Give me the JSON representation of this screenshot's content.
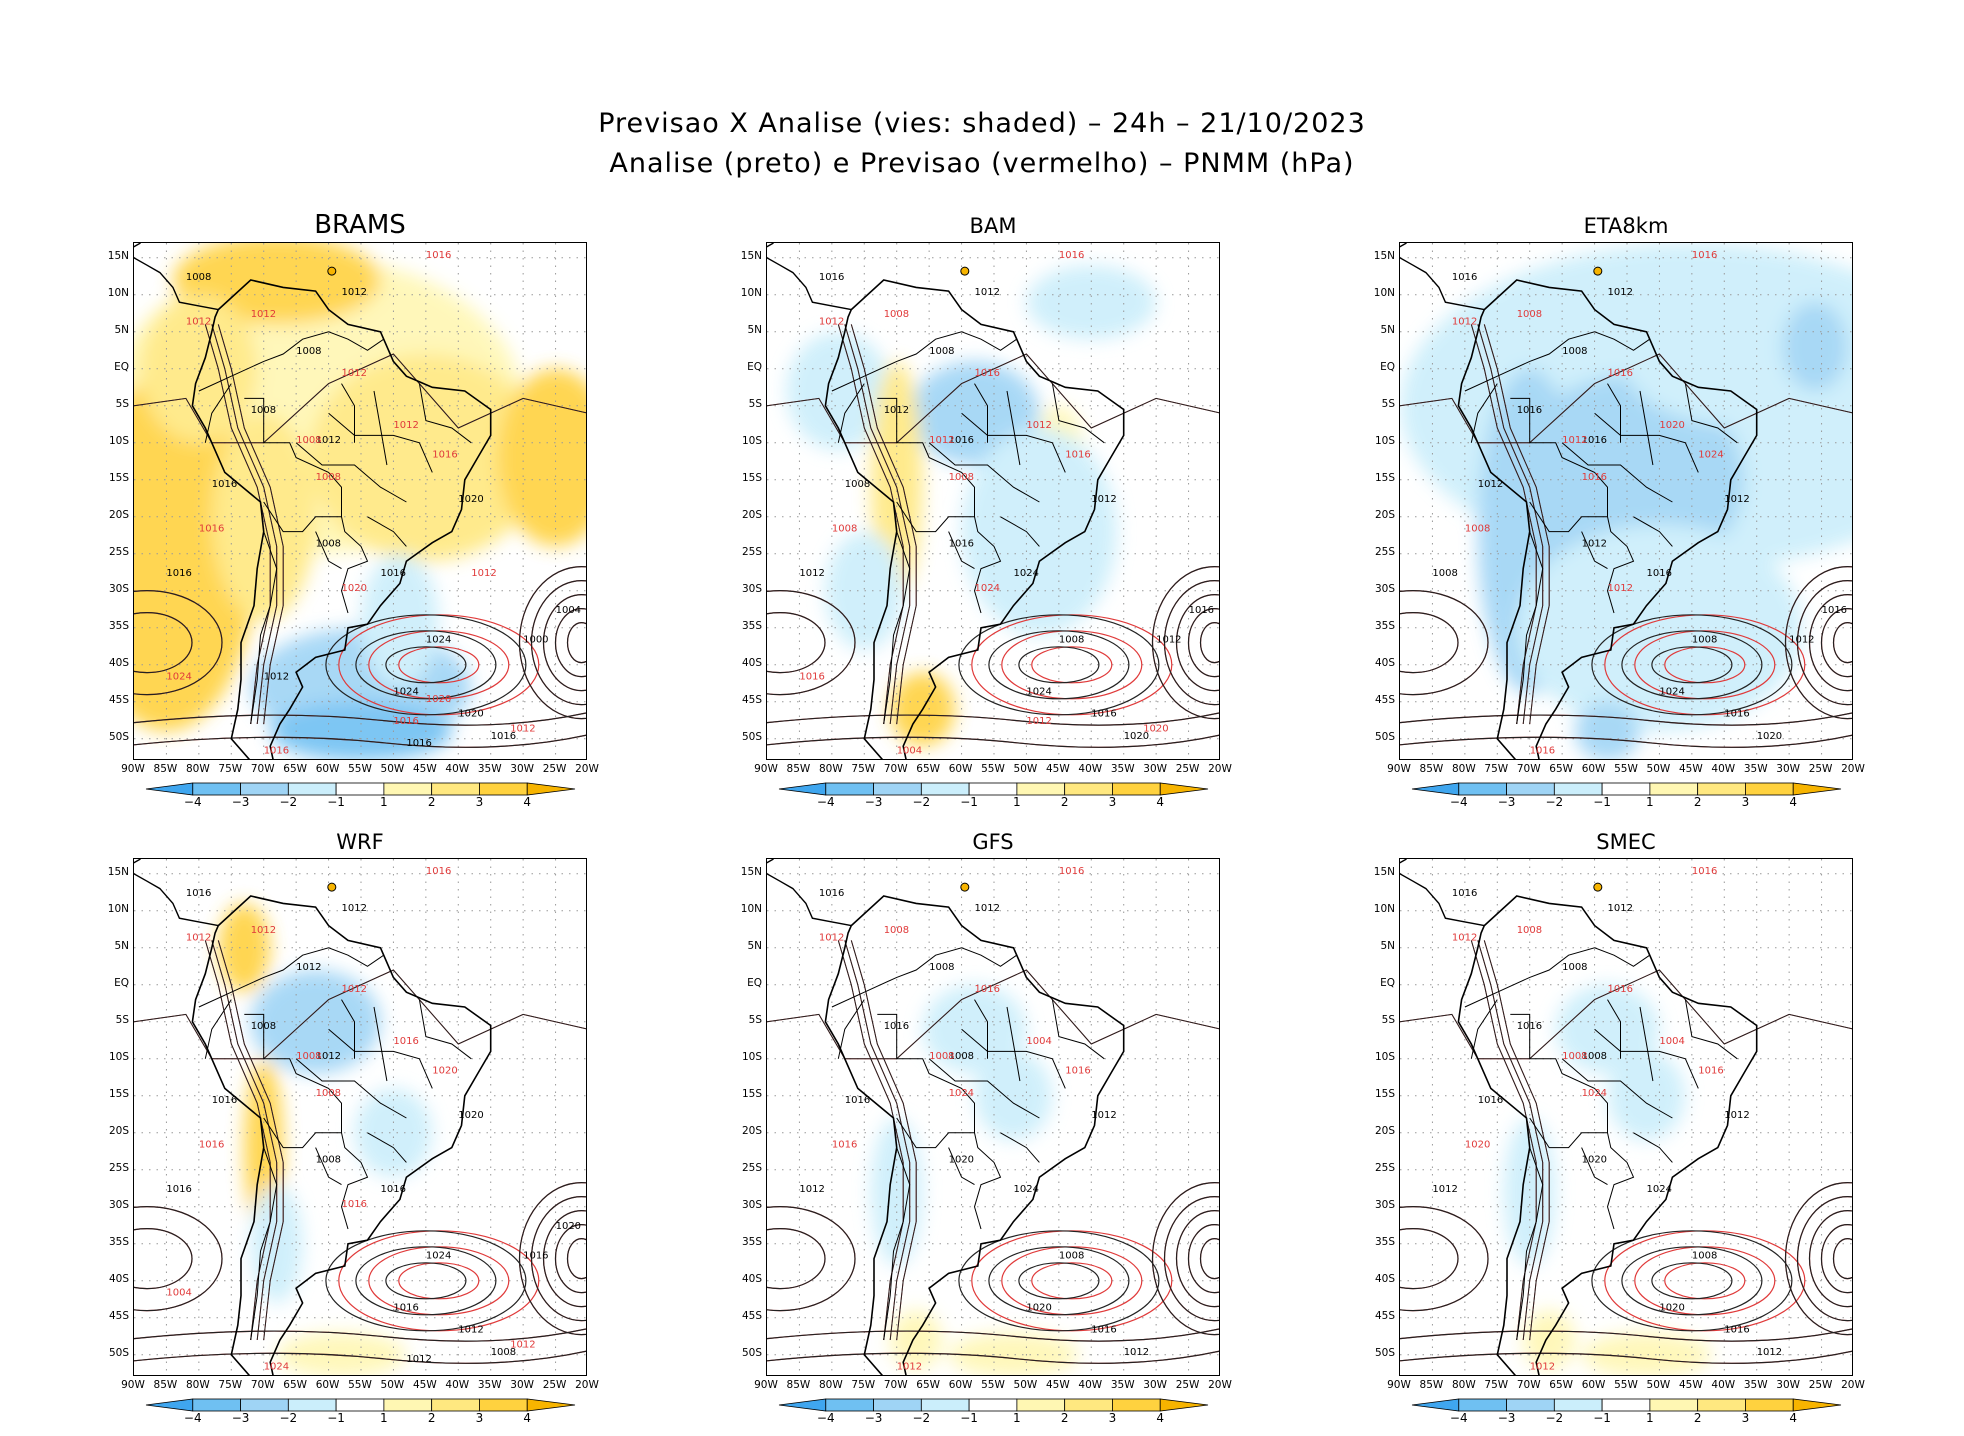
{
  "title": {
    "line1": "Previsao X Analise (vies: shaded) – 24h – 21/10/2023",
    "line2": "Analise (preto) e Previsao (vermelho) – PNMM (hPa)"
  },
  "axes": {
    "lat_labels": [
      "15N",
      "10N",
      "5N",
      "EQ",
      "5S",
      "10S",
      "15S",
      "20S",
      "25S",
      "30S",
      "35S",
      "40S",
      "45S",
      "50S"
    ],
    "lon_labels": [
      "90W",
      "85W",
      "80W",
      "75W",
      "70W",
      "65W",
      "60W",
      "55W",
      "50W",
      "45W",
      "40W",
      "35W",
      "30W",
      "25W",
      "20W"
    ]
  },
  "colorbar": {
    "tick_labels": [
      "−4",
      "−3",
      "−2",
      "−1",
      "1",
      "2",
      "3",
      "4"
    ],
    "colors": [
      "#3fa6ef",
      "#6fc0f2",
      "#9fd4f5",
      "#cbeefb",
      "#ffffff",
      "#fff7b3",
      "#ffe880",
      "#ffd23f",
      "#f7b400"
    ]
  },
  "panels": [
    {
      "name": "BRAMS",
      "bias": "warm",
      "black_labels": [
        "1008",
        "1012",
        "1008",
        "1008",
        "1012",
        "1016",
        "1016",
        "1008",
        "1016",
        "1020",
        "1024",
        "1024",
        "1020",
        "1016",
        "1004",
        "1000",
        "1016",
        "1012"
      ],
      "red_labels": [
        "1016",
        "1012",
        "1012",
        "1008",
        "1012",
        "1016",
        "1008",
        "1012",
        "1016",
        "1016",
        "1020",
        "1012",
        "1024",
        "1016",
        "1020",
        "1012"
      ]
    },
    {
      "name": "BAM",
      "bias": "cool",
      "black_labels": [
        "1016",
        "1012",
        "1008",
        "1012",
        "1016",
        "1008",
        "1012",
        "1016",
        "1024",
        "1012",
        "1008",
        "1024",
        "1016",
        "1020",
        "1016",
        "1012"
      ],
      "red_labels": [
        "1016",
        "1012",
        "1008",
        "1012",
        "1016",
        "1008",
        "1008",
        "1012",
        "1016",
        "1004",
        "1024",
        "1020",
        "1016",
        "1012"
      ]
    },
    {
      "name": "ETA8km",
      "bias": "cool-strong",
      "black_labels": [
        "1016",
        "1012",
        "1008",
        "1016",
        "1016",
        "1012",
        "1008",
        "1012",
        "1016",
        "1012",
        "1008",
        "1024",
        "1016",
        "1020",
        "1016",
        "1012"
      ],
      "red_labels": [
        "1016",
        "1012",
        "1008",
        "1012",
        "1016",
        "1008",
        "1016",
        "1020",
        "1024",
        "1016",
        "1012"
      ]
    },
    {
      "name": "WRF",
      "bias": "mixed",
      "black_labels": [
        "1016",
        "1012",
        "1012",
        "1008",
        "1012",
        "1016",
        "1016",
        "1008",
        "1016",
        "1020",
        "1024",
        "1016",
        "1012",
        "1008",
        "1020",
        "1016",
        "1012"
      ],
      "red_labels": [
        "1016",
        "1012",
        "1012",
        "1008",
        "1012",
        "1016",
        "1008",
        "1016",
        "1020",
        "1024",
        "1016",
        "1012",
        "1004"
      ]
    },
    {
      "name": "GFS",
      "bias": "slightly-cool",
      "black_labels": [
        "1016",
        "1012",
        "1008",
        "1016",
        "1008",
        "1016",
        "1012",
        "1020",
        "1024",
        "1012",
        "1008",
        "1020",
        "1016",
        "1012"
      ],
      "red_labels": [
        "1016",
        "1012",
        "1008",
        "1008",
        "1016",
        "1016",
        "1024",
        "1004",
        "1016",
        "1012"
      ]
    },
    {
      "name": "SMEC",
      "bias": "slightly-cool",
      "black_labels": [
        "1016",
        "1012",
        "1008",
        "1016",
        "1008",
        "1016",
        "1012",
        "1020",
        "1024",
        "1012",
        "1008",
        "1020",
        "1016",
        "1012"
      ],
      "red_labels": [
        "1016",
        "1012",
        "1008",
        "1008",
        "1016",
        "1020",
        "1024",
        "1004",
        "1016",
        "1012"
      ]
    }
  ]
}
